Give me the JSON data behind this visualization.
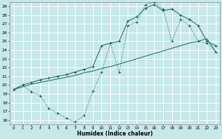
{
  "xlabel": "Humidex (Indice chaleur)",
  "ylabel": "",
  "bg_color": "#c6e8e8",
  "grid_color": "#ffffff",
  "line_color": "#1a5f5f",
  "xlim": [
    -0.5,
    23.5
  ],
  "ylim": [
    15.5,
    29.5
  ],
  "xticks": [
    0,
    1,
    2,
    3,
    4,
    5,
    6,
    7,
    8,
    9,
    10,
    11,
    12,
    13,
    14,
    15,
    16,
    17,
    18,
    19,
    20,
    21,
    22,
    23
  ],
  "yticks": [
    16,
    17,
    18,
    19,
    20,
    21,
    22,
    23,
    24,
    25,
    26,
    27,
    28,
    29
  ],
  "line1_x": [
    0,
    1,
    2,
    3,
    4,
    5,
    6,
    7,
    8,
    9,
    10,
    11,
    12,
    13,
    14,
    15,
    16,
    17,
    18,
    19,
    20,
    21,
    22,
    23
  ],
  "line1_y": [
    19.5,
    20.0,
    19.2,
    18.8,
    17.3,
    16.8,
    16.2,
    15.8,
    16.5,
    19.3,
    21.5,
    24.8,
    21.5,
    26.8,
    27.2,
    29.2,
    29.5,
    28.7,
    25.0,
    27.5,
    26.8,
    25.0,
    24.8,
    23.8
  ],
  "line2_x": [
    0,
    1,
    2,
    3,
    4,
    5,
    6,
    7,
    8,
    9,
    10,
    11,
    12,
    13,
    14,
    15,
    16,
    17,
    18,
    19,
    20,
    21,
    22,
    23
  ],
  "line2_y": [
    19.5,
    19.8,
    20.1,
    20.3,
    20.5,
    20.7,
    20.9,
    21.1,
    21.4,
    21.6,
    21.9,
    22.1,
    22.4,
    22.7,
    23.0,
    23.3,
    23.6,
    23.9,
    24.2,
    24.5,
    24.8,
    25.0,
    25.3,
    23.8
  ],
  "line3_x": [
    0,
    1,
    2,
    3,
    4,
    5,
    6,
    7,
    8,
    9,
    10,
    11,
    12,
    13,
    14,
    15,
    16,
    17,
    18,
    19,
    20,
    21,
    22,
    23
  ],
  "line3_y": [
    19.5,
    20.0,
    20.3,
    20.6,
    20.8,
    21.0,
    21.2,
    21.5,
    21.8,
    22.1,
    24.5,
    24.8,
    25.0,
    27.3,
    27.8,
    28.8,
    29.2,
    28.5,
    28.7,
    28.0,
    27.5,
    26.8,
    25.0,
    24.5
  ]
}
